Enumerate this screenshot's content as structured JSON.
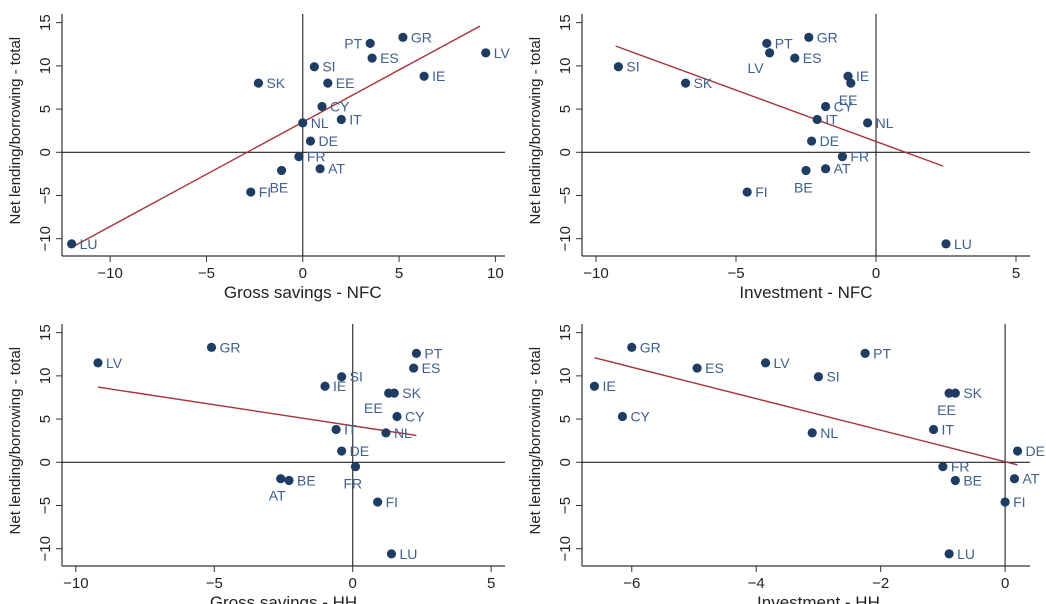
{
  "chart_data": [
    {
      "type": "scatter",
      "xlabel": "Gross savings - NFC",
      "ylabel": "Net lending/borrowing - total",
      "xlim": [
        -12.5,
        10.5
      ],
      "ylim": [
        -12,
        16
      ],
      "xticks": [
        -10,
        -5,
        0,
        5,
        10
      ],
      "yticks": [
        -10,
        -5,
        0,
        5,
        10,
        15
      ],
      "reference_lines": {
        "x": 0,
        "y": 0
      },
      "fit_line": [
        [
          -12,
          -11
        ],
        [
          9.2,
          14.6
        ]
      ],
      "points": [
        {
          "label": "PT",
          "x": 3.5,
          "y": 12.6,
          "label_pos": "left"
        },
        {
          "label": "GR",
          "x": 5.2,
          "y": 13.3,
          "label_pos": "right"
        },
        {
          "label": "ES",
          "x": 3.6,
          "y": 10.9,
          "label_pos": "right"
        },
        {
          "label": "SI",
          "x": 0.6,
          "y": 9.9,
          "label_pos": "right"
        },
        {
          "label": "LV",
          "x": 9.5,
          "y": 11.5,
          "label_pos": "right"
        },
        {
          "label": "SK",
          "x": -2.3,
          "y": 8.0,
          "label_pos": "right"
        },
        {
          "label": "EE",
          "x": 1.3,
          "y": 8.0,
          "label_pos": "right"
        },
        {
          "label": "IE",
          "x": 6.3,
          "y": 8.8,
          "label_pos": "right"
        },
        {
          "label": "CY",
          "x": 1.0,
          "y": 5.3,
          "label_pos": "right"
        },
        {
          "label": "NL",
          "x": 0.0,
          "y": 3.4,
          "label_pos": "right"
        },
        {
          "label": "IT",
          "x": 2.0,
          "y": 3.8,
          "label_pos": "right"
        },
        {
          "label": "DE",
          "x": 0.4,
          "y": 1.3,
          "label_pos": "right"
        },
        {
          "label": "FR",
          "x": -0.2,
          "y": -0.5,
          "label_pos": "right"
        },
        {
          "label": "BE",
          "x": -1.1,
          "y": -2.1,
          "label_pos": "below"
        },
        {
          "label": "AT",
          "x": 0.9,
          "y": -1.9,
          "label_pos": "right"
        },
        {
          "label": "FI",
          "x": -2.7,
          "y": -4.6,
          "label_pos": "right"
        },
        {
          "label": "LU",
          "x": -12.0,
          "y": -10.6,
          "label_pos": "right"
        }
      ]
    },
    {
      "type": "scatter",
      "xlabel": "Investment - NFC",
      "ylabel": "Net lending/borrowing - total",
      "xlim": [
        -10.5,
        5.5
      ],
      "ylim": [
        -12,
        16
      ],
      "xticks": [
        -10,
        -5,
        0,
        5
      ],
      "yticks": [
        -10,
        -5,
        0,
        5,
        10,
        15
      ],
      "reference_lines": {
        "x": 0,
        "y": 0
      },
      "fit_line": [
        [
          -9.3,
          12.3
        ],
        [
          2.4,
          -1.6
        ]
      ],
      "points": [
        {
          "label": "PT",
          "x": -3.9,
          "y": 12.6,
          "label_pos": "right"
        },
        {
          "label": "GR",
          "x": -2.4,
          "y": 13.3,
          "label_pos": "right"
        },
        {
          "label": "LV",
          "x": -3.8,
          "y": 11.5,
          "label_pos": "left-below"
        },
        {
          "label": "ES",
          "x": -2.9,
          "y": 10.9,
          "label_pos": "right"
        },
        {
          "label": "SI",
          "x": -9.2,
          "y": 9.9,
          "label_pos": "right"
        },
        {
          "label": "SK",
          "x": -6.8,
          "y": 8.0,
          "label_pos": "right"
        },
        {
          "label": "IE",
          "x": -1.0,
          "y": 8.8,
          "label_pos": "right"
        },
        {
          "label": "EE",
          "x": -0.9,
          "y": 8.0,
          "label_pos": "below"
        },
        {
          "label": "CY",
          "x": -1.8,
          "y": 5.3,
          "label_pos": "right"
        },
        {
          "label": "IT",
          "x": -2.1,
          "y": 3.8,
          "label_pos": "right"
        },
        {
          "label": "NL",
          "x": -0.3,
          "y": 3.4,
          "label_pos": "right"
        },
        {
          "label": "DE",
          "x": -2.3,
          "y": 1.3,
          "label_pos": "right"
        },
        {
          "label": "FR",
          "x": -1.2,
          "y": -0.5,
          "label_pos": "right"
        },
        {
          "label": "AT",
          "x": -1.8,
          "y": -1.9,
          "label_pos": "right"
        },
        {
          "label": "BE",
          "x": -2.5,
          "y": -2.1,
          "label_pos": "below"
        },
        {
          "label": "FI",
          "x": -4.6,
          "y": -4.6,
          "label_pos": "right"
        },
        {
          "label": "LU",
          "x": 2.5,
          "y": -10.6,
          "label_pos": "right"
        }
      ]
    },
    {
      "type": "scatter",
      "xlabel": "Gross savings - HH",
      "ylabel": "Net lending/borrowing - total",
      "xlim": [
        -10.5,
        5.5
      ],
      "ylim": [
        -12,
        16
      ],
      "xticks": [
        -10,
        -5,
        0,
        5
      ],
      "yticks": [
        -10,
        -5,
        0,
        5,
        10,
        15
      ],
      "reference_lines": {
        "x": 0,
        "y": 0
      },
      "fit_line": [
        [
          -9.2,
          8.7
        ],
        [
          2.3,
          3.1
        ]
      ],
      "points": [
        {
          "label": "LV",
          "x": -9.2,
          "y": 11.5,
          "label_pos": "right"
        },
        {
          "label": "GR",
          "x": -5.1,
          "y": 13.3,
          "label_pos": "right"
        },
        {
          "label": "PT",
          "x": 2.3,
          "y": 12.6,
          "label_pos": "right"
        },
        {
          "label": "ES",
          "x": 2.2,
          "y": 10.9,
          "label_pos": "right"
        },
        {
          "label": "SI",
          "x": -0.4,
          "y": 9.9,
          "label_pos": "right"
        },
        {
          "label": "IE",
          "x": -1.0,
          "y": 8.8,
          "label_pos": "right"
        },
        {
          "label": "SK",
          "x": 1.5,
          "y": 8.0,
          "label_pos": "right"
        },
        {
          "label": "EE",
          "x": 1.3,
          "y": 8.0,
          "label_pos": "left-below"
        },
        {
          "label": "CY",
          "x": 1.6,
          "y": 5.3,
          "label_pos": "right"
        },
        {
          "label": "IT",
          "x": -0.6,
          "y": 3.8,
          "label_pos": "right"
        },
        {
          "label": "NL",
          "x": 1.2,
          "y": 3.4,
          "label_pos": "right"
        },
        {
          "label": "DE",
          "x": -0.4,
          "y": 1.3,
          "label_pos": "right"
        },
        {
          "label": "FR",
          "x": 0.1,
          "y": -0.5,
          "label_pos": "below"
        },
        {
          "label": "AT",
          "x": -2.6,
          "y": -1.9,
          "label_pos": "below"
        },
        {
          "label": "BE",
          "x": -2.3,
          "y": -2.1,
          "label_pos": "right"
        },
        {
          "label": "FI",
          "x": 0.9,
          "y": -4.6,
          "label_pos": "right"
        },
        {
          "label": "LU",
          "x": 1.4,
          "y": -10.6,
          "label_pos": "right"
        }
      ]
    },
    {
      "type": "scatter",
      "xlabel": "Investment - HH",
      "ylabel": "Net lending/borrowing - total",
      "xlim": [
        -6.8,
        0.4
      ],
      "ylim": [
        -12,
        16
      ],
      "xticks": [
        -6,
        -4,
        -2,
        0
      ],
      "yticks": [
        -10,
        -5,
        0,
        5,
        10,
        15
      ],
      "reference_lines": {
        "x": 0,
        "y": 0
      },
      "fit_line": [
        [
          -6.6,
          12.1
        ],
        [
          0.2,
          -0.3
        ]
      ],
      "points": [
        {
          "label": "GR",
          "x": -6.0,
          "y": 13.3,
          "label_pos": "right"
        },
        {
          "label": "PT",
          "x": -2.25,
          "y": 12.6,
          "label_pos": "right"
        },
        {
          "label": "ES",
          "x": -4.95,
          "y": 10.9,
          "label_pos": "right"
        },
        {
          "label": "LV",
          "x": -3.85,
          "y": 11.5,
          "label_pos": "right"
        },
        {
          "label": "SI",
          "x": -3.0,
          "y": 9.9,
          "label_pos": "right"
        },
        {
          "label": "IE",
          "x": -6.6,
          "y": 8.8,
          "label_pos": "right"
        },
        {
          "label": "SK",
          "x": -0.8,
          "y": 8.0,
          "label_pos": "right"
        },
        {
          "label": "EE",
          "x": -0.9,
          "y": 8.0,
          "label_pos": "below"
        },
        {
          "label": "CY",
          "x": -6.15,
          "y": 5.3,
          "label_pos": "right"
        },
        {
          "label": "NL",
          "x": -3.1,
          "y": 3.4,
          "label_pos": "right"
        },
        {
          "label": "IT",
          "x": -1.15,
          "y": 3.8,
          "label_pos": "right"
        },
        {
          "label": "DE",
          "x": 0.2,
          "y": 1.3,
          "label_pos": "right"
        },
        {
          "label": "FR",
          "x": -1.0,
          "y": -0.5,
          "label_pos": "right"
        },
        {
          "label": "AT",
          "x": 0.15,
          "y": -1.9,
          "label_pos": "right"
        },
        {
          "label": "BE",
          "x": -0.8,
          "y": -2.1,
          "label_pos": "right"
        },
        {
          "label": "FI",
          "x": 0.0,
          "y": -4.6,
          "label_pos": "right"
        },
        {
          "label": "LU",
          "x": -0.9,
          "y": -10.6,
          "label_pos": "right"
        }
      ]
    }
  ],
  "colors": {
    "point": "#1f3d63",
    "point_label": "#3f5f8c",
    "fit_line": "#a5353a",
    "axis": "#333333",
    "reference_line": "#222222",
    "text": "#222222"
  }
}
